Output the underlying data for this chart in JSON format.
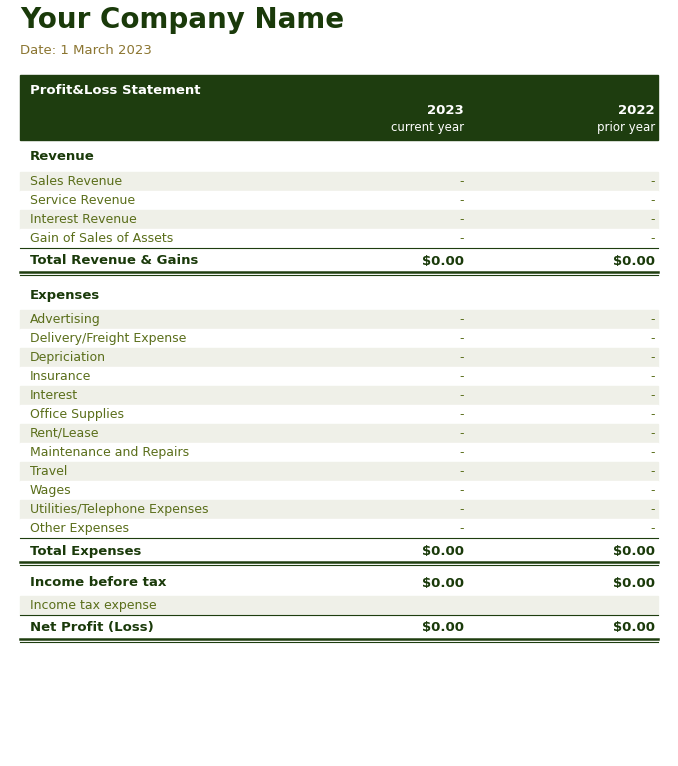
{
  "company_name": "Your Company Name",
  "date_label": "Date: 1 March 2023",
  "header_bg": "#1e3d0f",
  "header_text_color": "#ffffff",
  "header_title": "Profit&Loss Statement",
  "col1_header": "2023",
  "col1_subheader": "current year",
  "col2_header": "2022",
  "col2_subheader": "prior year",
  "company_color": "#1a3a0a",
  "date_color": "#8b7530",
  "section_label_color": "#1a3a0a",
  "row_text_color": "#5a6e1a",
  "total_text_color": "#1a3a0a",
  "row_bg_odd": "#eff0e8",
  "row_bg_even": "#ffffff",
  "section_heading_bg": "#ffffff",
  "total_row_bg": "#ffffff",
  "income_tax_bg": "#eff0e8",
  "revenue_items": [
    "Sales Revenue",
    "Service Revenue",
    "Interest Revenue",
    "Gain of Sales of Assets"
  ],
  "expense_items": [
    "Advertising",
    "Delivery/Freight Expense",
    "Depriciation",
    "Insurance",
    "Interest",
    "Office Supplies",
    "Rent/Lease",
    "Maintenance and Repairs",
    "Travel",
    "Wages",
    "Utilities/Telephone Expenses",
    "Other Expenses"
  ],
  "dash_value": "-",
  "total_value": "$0.00",
  "fig_bg": "#ffffff",
  "fig_w": 6.78,
  "fig_h": 7.66,
  "dpi": 100
}
